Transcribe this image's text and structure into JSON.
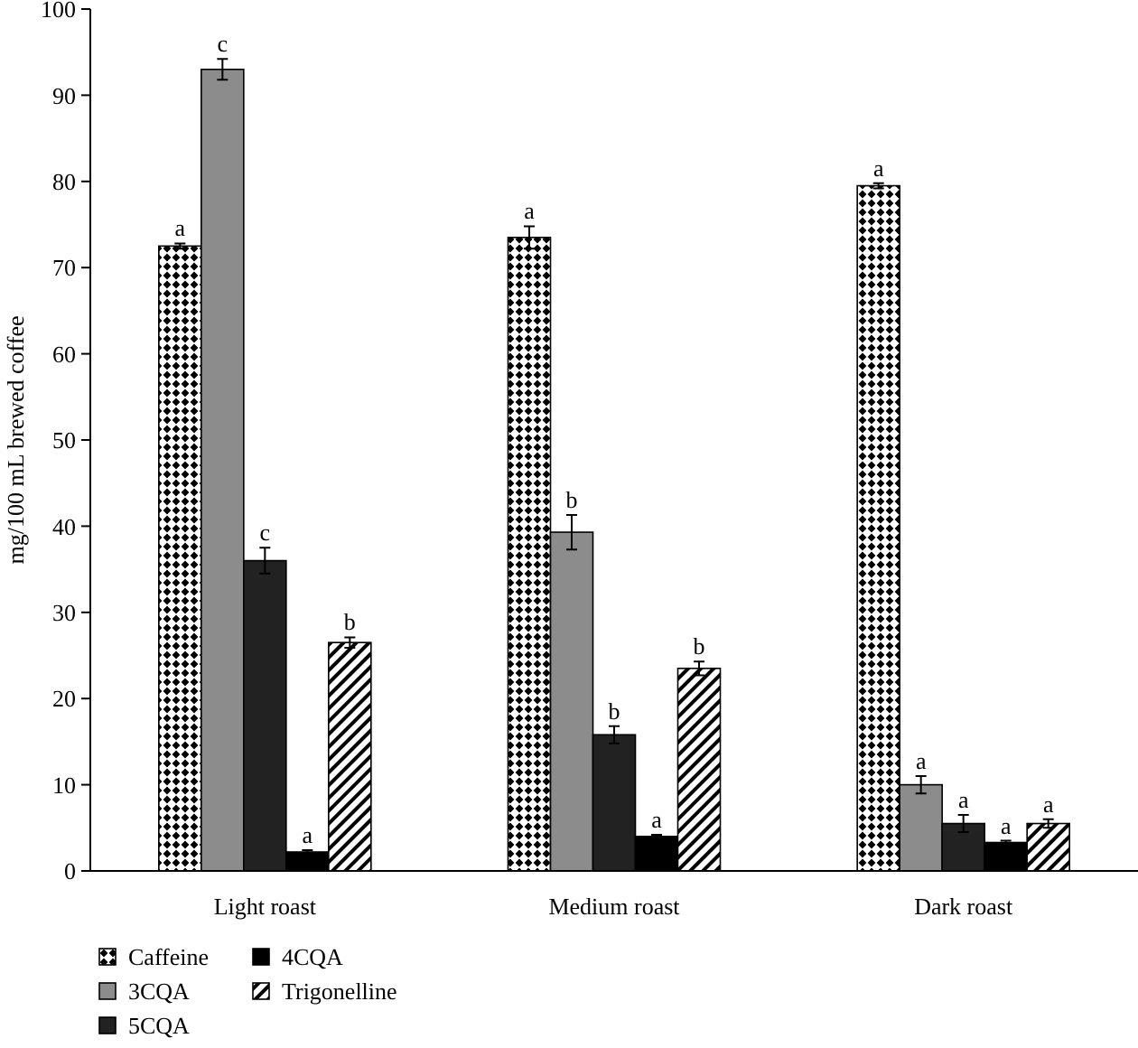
{
  "chart_data": {
    "type": "bar",
    "ylabel": "mg/100 mL brewed coffee",
    "categories": [
      "Light roast",
      "Medium roast",
      "Dark roast"
    ],
    "ylim": [
      0,
      100
    ],
    "yticks": [
      0,
      10,
      20,
      30,
      40,
      50,
      60,
      70,
      80,
      90,
      100
    ],
    "grid": false,
    "legend": "bottom",
    "series": [
      {
        "name": "Caffeine",
        "color": "#000000",
        "values": [
          72.5,
          73.5,
          79.5
        ],
        "errors": [
          0.3,
          1.3,
          0.3
        ],
        "value_labels": [
          "a",
          "a",
          "a"
        ]
      },
      {
        "name": "3CQA",
        "color": "#8c8c8c",
        "values": [
          93,
          39.3,
          10
        ],
        "errors": [
          1.2,
          2,
          1
        ],
        "value_labels": [
          "c",
          "b",
          "a"
        ]
      },
      {
        "name": "5CQA",
        "color": "#222222",
        "values": [
          36,
          15.8,
          5.5
        ],
        "errors": [
          1.5,
          1,
          1
        ],
        "value_labels": [
          "c",
          "b",
          "a"
        ]
      },
      {
        "name": "4CQA",
        "color": "#000000",
        "values": [
          2.2,
          4,
          3.3
        ],
        "errors": [
          0.2,
          0.2,
          0.2
        ],
        "value_labels": [
          "a",
          "a",
          "a"
        ]
      },
      {
        "name": "Trigonelline",
        "color": "#000000",
        "values": [
          26.5,
          23.5,
          5.5
        ],
        "errors": [
          0.6,
          0.8,
          0.5
        ],
        "value_labels": [
          "b",
          "b",
          "a"
        ]
      }
    ]
  }
}
